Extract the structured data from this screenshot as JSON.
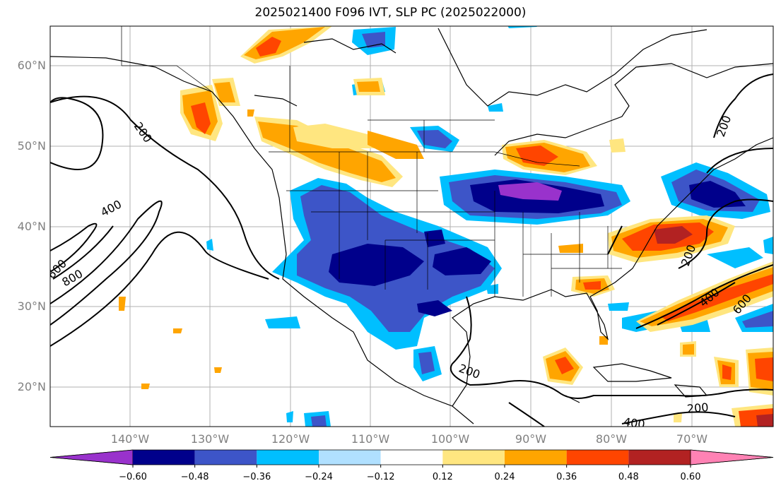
{
  "title": "2025021400 F096 IVT, SLP PC (2025022000)",
  "lat_labels": [
    "60°N",
    "50°N",
    "40°N",
    "30°N",
    "20°N"
  ],
  "lon_labels": [
    "140°W",
    "130°W",
    "120°W",
    "110°W",
    "100°W",
    "90°W",
    "80°W",
    "70°W"
  ],
  "contour_labels": [
    "200",
    "400",
    "600",
    "800",
    "200",
    "400",
    "600",
    "200",
    "200",
    "400",
    "200"
  ],
  "colorbar": {
    "ticks": [
      "−0.60",
      "−0.48",
      "−0.36",
      "−0.24",
      "−0.12",
      "0.12",
      "0.24",
      "0.36",
      "0.48",
      "0.60"
    ],
    "colors": [
      "#9932cc",
      "#00008b",
      "#3d55c8",
      "#00bfff",
      "#b0e0ff",
      "#ffffff",
      "#ffe680",
      "#ffa500",
      "#ff4500",
      "#b22222",
      "#ff82b4"
    ]
  }
}
